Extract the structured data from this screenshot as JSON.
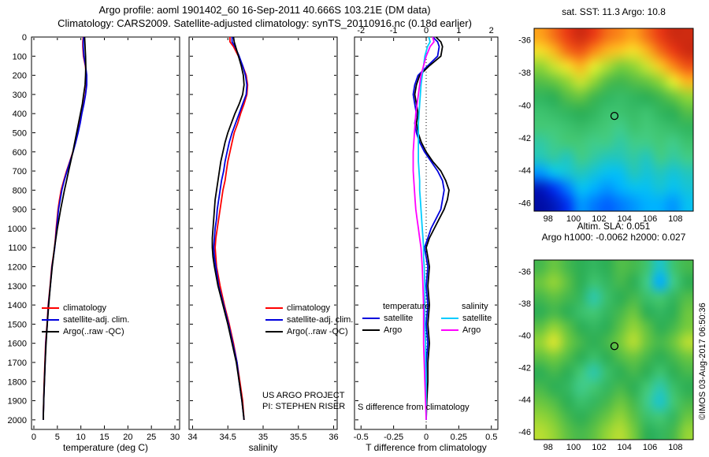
{
  "header": {
    "title_line1": "Argo profile: aoml 1901402_60 16-Sep-2011 40.666S 103.21E (DM data)",
    "title_line2": "Climatology: CARS2009. Satellite-adjusted climatology: synTS_20110916.nc (0.18d earlier)"
  },
  "watermark": {
    "text": "©IMOS 03-Aug-2017 06:50:36"
  },
  "chart_data": [
    {
      "type": "line",
      "name": "temperature-profile",
      "xlabel": "temperature (deg C)",
      "ylabel": "depth (m)",
      "xlim": [
        -0.5,
        31
      ],
      "xticks": [
        0,
        5,
        10,
        15,
        20,
        25,
        30
      ],
      "ylim": [
        0,
        2050
      ],
      "yticks": [
        0,
        100,
        200,
        300,
        400,
        500,
        600,
        700,
        800,
        900,
        1000,
        1100,
        1200,
        1300,
        1400,
        1500,
        1600,
        1700,
        1800,
        1900,
        2000
      ],
      "depths": [
        0,
        25,
        50,
        100,
        150,
        200,
        250,
        300,
        350,
        400,
        450,
        500,
        550,
        600,
        650,
        700,
        750,
        800,
        850,
        900,
        950,
        1000,
        1050,
        1100,
        1150,
        1200,
        1300,
        1400,
        1500,
        1600,
        1700,
        1800,
        1900,
        2000
      ],
      "series": [
        {
          "name": "climatology",
          "color": "#ff0000",
          "values": [
            10.5,
            10.4,
            10.4,
            10.55,
            10.95,
            11.2,
            11.2,
            10.95,
            10.6,
            10.15,
            9.8,
            9.35,
            8.85,
            8.3,
            7.65,
            6.95,
            6.35,
            5.8,
            5.45,
            5.15,
            4.95,
            4.75,
            4.6,
            4.4,
            4.1,
            3.8,
            3.45,
            3.05,
            2.8,
            2.5,
            2.35,
            2.2,
            2.08,
            2.0
          ]
        },
        {
          "name": "satellite-adj. clim.",
          "color": "#0000dd",
          "values": [
            10.6,
            10.5,
            10.5,
            10.65,
            11.0,
            11.25,
            11.25,
            11.0,
            10.65,
            10.2,
            9.85,
            9.4,
            8.9,
            8.35,
            7.7,
            7.05,
            6.45,
            5.95,
            5.6,
            5.25,
            5.05,
            4.85,
            4.65,
            4.45,
            4.15,
            3.85,
            3.5,
            3.1,
            2.85,
            2.55,
            2.4,
            2.25,
            2.1,
            2.0
          ]
        },
        {
          "name": "Argo(..raw -QC)",
          "color": "#000000",
          "values": [
            10.8,
            10.85,
            10.9,
            11.0,
            11.05,
            11.0,
            10.9,
            10.6,
            10.3,
            9.9,
            9.5,
            9.1,
            8.7,
            8.3,
            7.85,
            7.4,
            6.95,
            6.5,
            6.1,
            5.7,
            5.35,
            5.0,
            4.7,
            4.4,
            4.15,
            3.9,
            3.5,
            3.15,
            2.85,
            2.6,
            2.4,
            2.25,
            2.1,
            2.0
          ]
        }
      ]
    },
    {
      "type": "line",
      "name": "salinity-profile",
      "xlabel": "salinity",
      "ylabel": "depth (m)",
      "xlim": [
        33.95,
        36.05
      ],
      "xticks": [
        34,
        34.5,
        35,
        35.5,
        36
      ],
      "ylim": [
        0,
        2050
      ],
      "yticks": [
        0,
        100,
        200,
        300,
        400,
        500,
        600,
        700,
        800,
        900,
        1000,
        1100,
        1200,
        1300,
        1400,
        1500,
        1600,
        1700,
        1800,
        1900,
        2000
      ],
      "annotations": [
        "US ARGO PROJECT",
        "PI: STEPHEN RISER"
      ],
      "depths": [
        0,
        25,
        50,
        100,
        150,
        200,
        250,
        300,
        350,
        400,
        450,
        500,
        550,
        600,
        650,
        700,
        750,
        800,
        850,
        900,
        950,
        1000,
        1050,
        1100,
        1150,
        1200,
        1300,
        1400,
        1500,
        1600,
        1700,
        1800,
        1900,
        2000
      ],
      "series": [
        {
          "name": "climatology",
          "color": "#ff0000",
          "values": [
            34.53,
            34.53,
            34.58,
            34.65,
            34.71,
            34.76,
            34.78,
            34.77,
            34.73,
            34.68,
            34.64,
            34.59,
            34.56,
            34.53,
            34.5,
            34.48,
            34.46,
            34.43,
            34.41,
            34.39,
            34.37,
            34.35,
            34.33,
            34.32,
            34.33,
            34.34,
            34.39,
            34.45,
            34.52,
            34.58,
            34.63,
            34.67,
            34.71,
            34.73
          ]
        },
        {
          "name": "satellite-adj. clim.",
          "color": "#0000dd",
          "values": [
            34.56,
            34.56,
            34.6,
            34.66,
            34.71,
            34.75,
            34.77,
            34.76,
            34.71,
            34.66,
            34.61,
            34.56,
            34.52,
            34.49,
            34.46,
            34.44,
            34.41,
            34.39,
            34.37,
            34.35,
            34.34,
            34.32,
            34.31,
            34.3,
            34.31,
            34.33,
            34.37,
            34.44,
            34.51,
            34.57,
            34.63,
            34.66,
            34.7,
            34.73
          ]
        },
        {
          "name": "Argo(..raw -QC)",
          "color": "#000000",
          "values": [
            34.58,
            34.59,
            34.61,
            34.65,
            34.69,
            34.72,
            34.73,
            34.71,
            34.66,
            34.6,
            34.55,
            34.5,
            34.46,
            34.43,
            34.4,
            34.38,
            34.36,
            34.34,
            34.32,
            34.31,
            34.3,
            34.29,
            34.28,
            34.28,
            34.29,
            34.31,
            34.36,
            34.43,
            34.5,
            34.56,
            34.62,
            34.66,
            34.7,
            34.73
          ]
        }
      ]
    },
    {
      "type": "line",
      "name": "climatology-difference",
      "xlabel": "T difference from climatology",
      "inner_label": "S difference from climatology",
      "xlim_T": [
        -2.2,
        2.2
      ],
      "xticks_T": [
        -2,
        -1,
        0,
        1,
        2
      ],
      "xlim_S": [
        -0.55,
        0.55
      ],
      "xticks_S": [
        -0.5,
        -0.25,
        0,
        0.25,
        0.5
      ],
      "ylim": [
        0,
        2050
      ],
      "yticks": [
        0,
        100,
        200,
        300,
        400,
        500,
        600,
        700,
        800,
        900,
        1000,
        1100,
        1200,
        1300,
        1400,
        1500,
        1600,
        1700,
        1800,
        1900,
        2000
      ],
      "group_headers": [
        "temperature",
        "salinity"
      ],
      "depths": [
        0,
        25,
        50,
        100,
        150,
        200,
        250,
        300,
        350,
        400,
        450,
        500,
        550,
        600,
        650,
        700,
        750,
        800,
        850,
        900,
        950,
        1000,
        1050,
        1100,
        1150,
        1200,
        1300,
        1400,
        1500,
        1600,
        1700,
        1800,
        1900,
        2000
      ],
      "series": [
        {
          "name": "satellite",
          "axis": "T",
          "color": "#0000dd",
          "values": [
            0.2,
            0.35,
            0.4,
            0.35,
            0.05,
            -0.25,
            -0.35,
            -0.4,
            -0.35,
            -0.3,
            -0.35,
            -0.3,
            -0.2,
            -0.05,
            0.15,
            0.35,
            0.5,
            0.55,
            0.5,
            0.45,
            0.3,
            0.15,
            0.05,
            -0.05,
            0.0,
            0.05,
            0.0,
            0.05,
            0.0,
            0.05,
            0.0,
            0.0,
            0.0,
            0.0
          ]
        },
        {
          "name": "Argo",
          "axis": "T",
          "color": "#000000",
          "values": [
            0.3,
            0.45,
            0.5,
            0.45,
            0.1,
            -0.2,
            -0.3,
            -0.35,
            -0.3,
            -0.25,
            -0.3,
            -0.25,
            -0.15,
            0.0,
            0.2,
            0.45,
            0.6,
            0.7,
            0.65,
            0.55,
            0.4,
            0.25,
            0.1,
            0.0,
            0.05,
            0.1,
            0.05,
            0.1,
            0.05,
            0.1,
            0.05,
            0.05,
            0.02,
            0.0
          ]
        },
        {
          "name": "satellite",
          "axis": "S",
          "color": "#00ccff",
          "values": [
            0.02,
            0.03,
            0.01,
            -0.01,
            -0.02,
            -0.03,
            -0.04,
            -0.045,
            -0.05,
            -0.055,
            -0.06,
            -0.06,
            -0.06,
            -0.06,
            -0.06,
            -0.055,
            -0.05,
            -0.05,
            -0.045,
            -0.04,
            -0.035,
            -0.03,
            -0.025,
            -0.02,
            -0.02,
            -0.015,
            -0.01,
            -0.01,
            -0.01,
            -0.005,
            -0.005,
            0.0,
            0.0,
            0.0
          ]
        },
        {
          "name": "Argo",
          "axis": "S",
          "color": "#ff00ff",
          "values": [
            0.05,
            0.06,
            0.03,
            0.0,
            -0.02,
            -0.04,
            -0.05,
            -0.06,
            -0.07,
            -0.08,
            -0.085,
            -0.09,
            -0.095,
            -0.1,
            -0.1,
            -0.1,
            -0.095,
            -0.09,
            -0.085,
            -0.08,
            -0.07,
            -0.06,
            -0.05,
            -0.04,
            -0.035,
            -0.03,
            -0.025,
            -0.02,
            -0.02,
            -0.02,
            -0.015,
            -0.01,
            -0.005,
            0.0
          ]
        }
      ]
    },
    {
      "type": "heatmap",
      "name": "sst-map",
      "title": "sat. SST: 11.3 Argo: 10.8",
      "lon_range": [
        96.9,
        109.4
      ],
      "lat_range": [
        -35.3,
        -46.5
      ],
      "lon_ticks": [
        98,
        100,
        102,
        104,
        106,
        108
      ],
      "lat_ticks": [
        -36,
        -38,
        -40,
        -42,
        -44,
        -46
      ],
      "vmin": 3,
      "vmax": 22,
      "marker": {
        "lon": 103.21,
        "lat": -40.666
      },
      "grid": [
        [
          18.5,
          19.5,
          20.5,
          21,
          20.5,
          19.5,
          19,
          18.5,
          19.5,
          20.5,
          21,
          21
        ],
        [
          17,
          18,
          19.5,
          20,
          19,
          18,
          17.5,
          17,
          18,
          19.5,
          20.5,
          21
        ],
        [
          15,
          16,
          17,
          18,
          16.5,
          15.5,
          14.5,
          15,
          16,
          17.5,
          19,
          20
        ],
        [
          13.5,
          14,
          15,
          16,
          15,
          13.5,
          13,
          13.5,
          14,
          15,
          16.5,
          18
        ],
        [
          12,
          12.5,
          13.5,
          14,
          13,
          12,
          11.5,
          12,
          12.5,
          13,
          14,
          15
        ],
        [
          11,
          11.5,
          12,
          12.5,
          12,
          11,
          11,
          11.5,
          11,
          12,
          12.5,
          13.5
        ],
        [
          10.5,
          10.5,
          11,
          11.5,
          11,
          10.5,
          10,
          11,
          10.5,
          11,
          11.5,
          12
        ],
        [
          9.5,
          10,
          10.5,
          10.5,
          10,
          10,
          9.5,
          10,
          10,
          10.5,
          10,
          11
        ],
        [
          9,
          9.5,
          9,
          10,
          9.5,
          9,
          9,
          9.5,
          9,
          10,
          9.5,
          10
        ],
        [
          7,
          8,
          8.5,
          9,
          8.5,
          8,
          8,
          9,
          8.5,
          9,
          8.5,
          9
        ],
        [
          4,
          5,
          6.5,
          8,
          7.5,
          7,
          7.5,
          8,
          8,
          8.5,
          8,
          8.5
        ],
        [
          3.5,
          4,
          5,
          7,
          6.5,
          6,
          6.5,
          7,
          7.5,
          7.5,
          7,
          8
        ]
      ]
    },
    {
      "type": "heatmap",
      "name": "sla-map",
      "title_line1": "Altim. SLA: 0.051",
      "title_line2": "Argo h1000: -0.0062 h2000: 0.027",
      "lon_range": [
        96.9,
        109.4
      ],
      "lat_range": [
        -35.3,
        -46.5
      ],
      "lon_ticks": [
        98,
        100,
        102,
        104,
        106,
        108
      ],
      "lat_ticks": [
        -36,
        -38,
        -40,
        -42,
        -44,
        -46
      ],
      "vmin": -0.3,
      "vmax": 0.3,
      "marker": {
        "lon": 103.21,
        "lat": -40.666
      },
      "grid": [
        [
          0.02,
          0.05,
          0.02,
          0,
          -0.02,
          0,
          0.03,
          0.02,
          -0.05,
          -0.12,
          -0.05,
          0.02
        ],
        [
          0.05,
          0.08,
          0.04,
          0,
          -0.05,
          -0.02,
          0.02,
          0,
          -0.08,
          -0.16,
          -0.08,
          0
        ],
        [
          0.02,
          0.04,
          0.02,
          -0.02,
          -0.1,
          -0.04,
          0,
          0.02,
          -0.04,
          -0.06,
          -0.02,
          0.03
        ],
        [
          0,
          0.02,
          0,
          -0.04,
          -0.06,
          -0.02,
          0.02,
          0.05,
          0,
          -0.02,
          0,
          0.05
        ],
        [
          0.04,
          0.08,
          0.04,
          0,
          -0.02,
          0,
          0.04,
          0.08,
          0.04,
          0,
          0.02,
          0.06
        ],
        [
          0.08,
          0.12,
          0.06,
          0.02,
          0,
          0.02,
          0.06,
          0.1,
          0.05,
          0.02,
          0.05,
          0.1
        ],
        [
          0.04,
          0.06,
          0.03,
          0,
          -0.04,
          0,
          0.03,
          0.05,
          0.02,
          0,
          0.02,
          0.05
        ],
        [
          0,
          0.02,
          0,
          -0.06,
          -0.1,
          -0.04,
          0,
          0.02,
          0,
          -0.05,
          0,
          0.02
        ],
        [
          0.02,
          0,
          -0.02,
          -0.08,
          -0.06,
          -0.02,
          0.02,
          0,
          -0.06,
          -0.1,
          -0.04,
          0
        ],
        [
          0.05,
          0.03,
          0,
          -0.04,
          -0.02,
          0.02,
          0.05,
          0.02,
          -0.08,
          -0.12,
          -0.06,
          0.02
        ],
        [
          0.08,
          0.06,
          0.02,
          0,
          0.02,
          0.05,
          0.08,
          0.04,
          -0.04,
          -0.06,
          -0.02,
          0.05
        ],
        [
          0.1,
          0.08,
          0.04,
          0.02,
          0.04,
          0.08,
          0.1,
          0.06,
          0,
          -0.02,
          0.02,
          0.08
        ]
      ]
    }
  ]
}
